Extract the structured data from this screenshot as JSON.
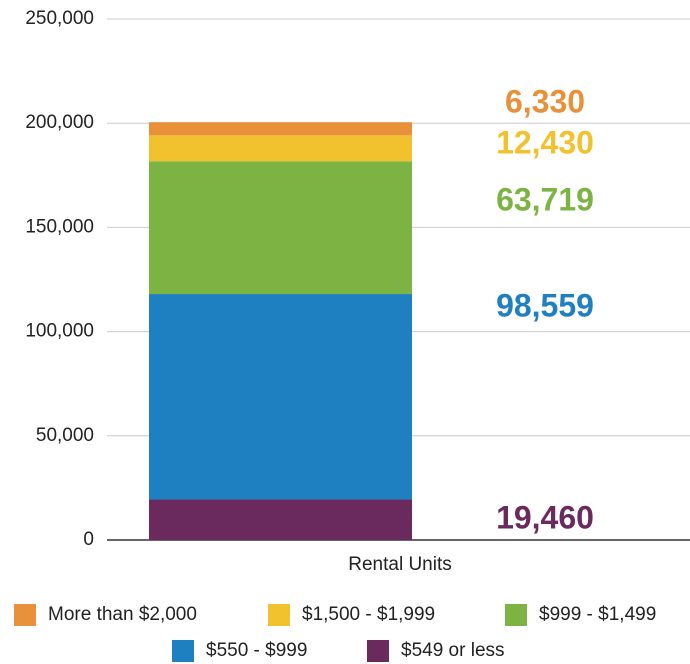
{
  "chart_data": {
    "type": "stacked_bar",
    "categories": [
      "Rental Units"
    ],
    "series": [
      {
        "name": "More than $2,000",
        "color": "#e8913a",
        "values": [
          6330
        ],
        "value_labels": [
          "6,330"
        ]
      },
      {
        "name": "$1,500 - $1,999",
        "color": "#f2c12e",
        "values": [
          12430
        ],
        "value_labels": [
          "12,430"
        ]
      },
      {
        "name": "$999 - $1,499",
        "color": "#7cb342",
        "values": [
          63719
        ],
        "value_labels": [
          "63,719"
        ]
      },
      {
        "name": "$550 - $999",
        "color": "#1e7fc1",
        "values": [
          98559
        ],
        "value_labels": [
          "98,559"
        ]
      },
      {
        "name": "$549 or less",
        "color": "#6a2a5e",
        "values": [
          19460
        ],
        "value_labels": [
          "19,460"
        ]
      }
    ],
    "ylim": [
      0,
      250000
    ],
    "yticks": [
      0,
      {
        "value": 50000,
        "label": "50,000"
      },
      {
        "value": 100000,
        "label": "100,000"
      },
      {
        "value": 150000,
        "label": "150,000"
      },
      {
        "value": 200000,
        "label": "200,000"
      },
      {
        "value": 250000,
        "label": "250,000"
      }
    ],
    "grid": true,
    "legend": "bottom"
  }
}
